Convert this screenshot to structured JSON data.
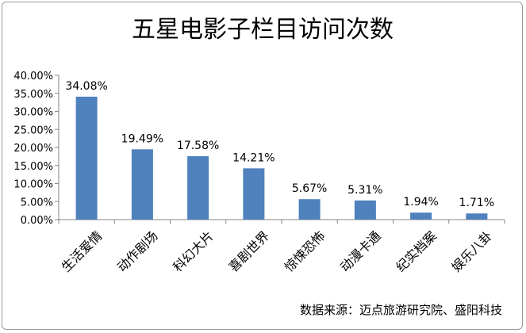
{
  "chart_data": {
    "type": "bar",
    "title": "五星电影子栏目访问次数",
    "categories": [
      "生活爱情",
      "动作剧场",
      "科幻大片",
      "喜剧世界",
      "惊悚恐怖",
      "动漫卡通",
      "纪实档案",
      "娱乐八卦"
    ],
    "values": [
      34.08,
      19.49,
      17.58,
      14.21,
      5.67,
      5.31,
      1.94,
      1.71
    ],
    "value_labels": [
      "34.08%",
      "19.49%",
      "17.58%",
      "14.21%",
      "5.67%",
      "5.31%",
      "1.94%",
      "1.71%"
    ],
    "y_ticks": [
      "0.00%",
      "5.00%",
      "10.00%",
      "15.00%",
      "20.00%",
      "25.00%",
      "30.00%",
      "35.00%",
      "40.00%"
    ],
    "ylim": [
      0,
      40
    ],
    "y_tick_step": 5,
    "grid": false,
    "legend": false,
    "bar_color": "#4f81bd",
    "source": "数据来源：迈点旅游研究院、盛阳科技"
  }
}
